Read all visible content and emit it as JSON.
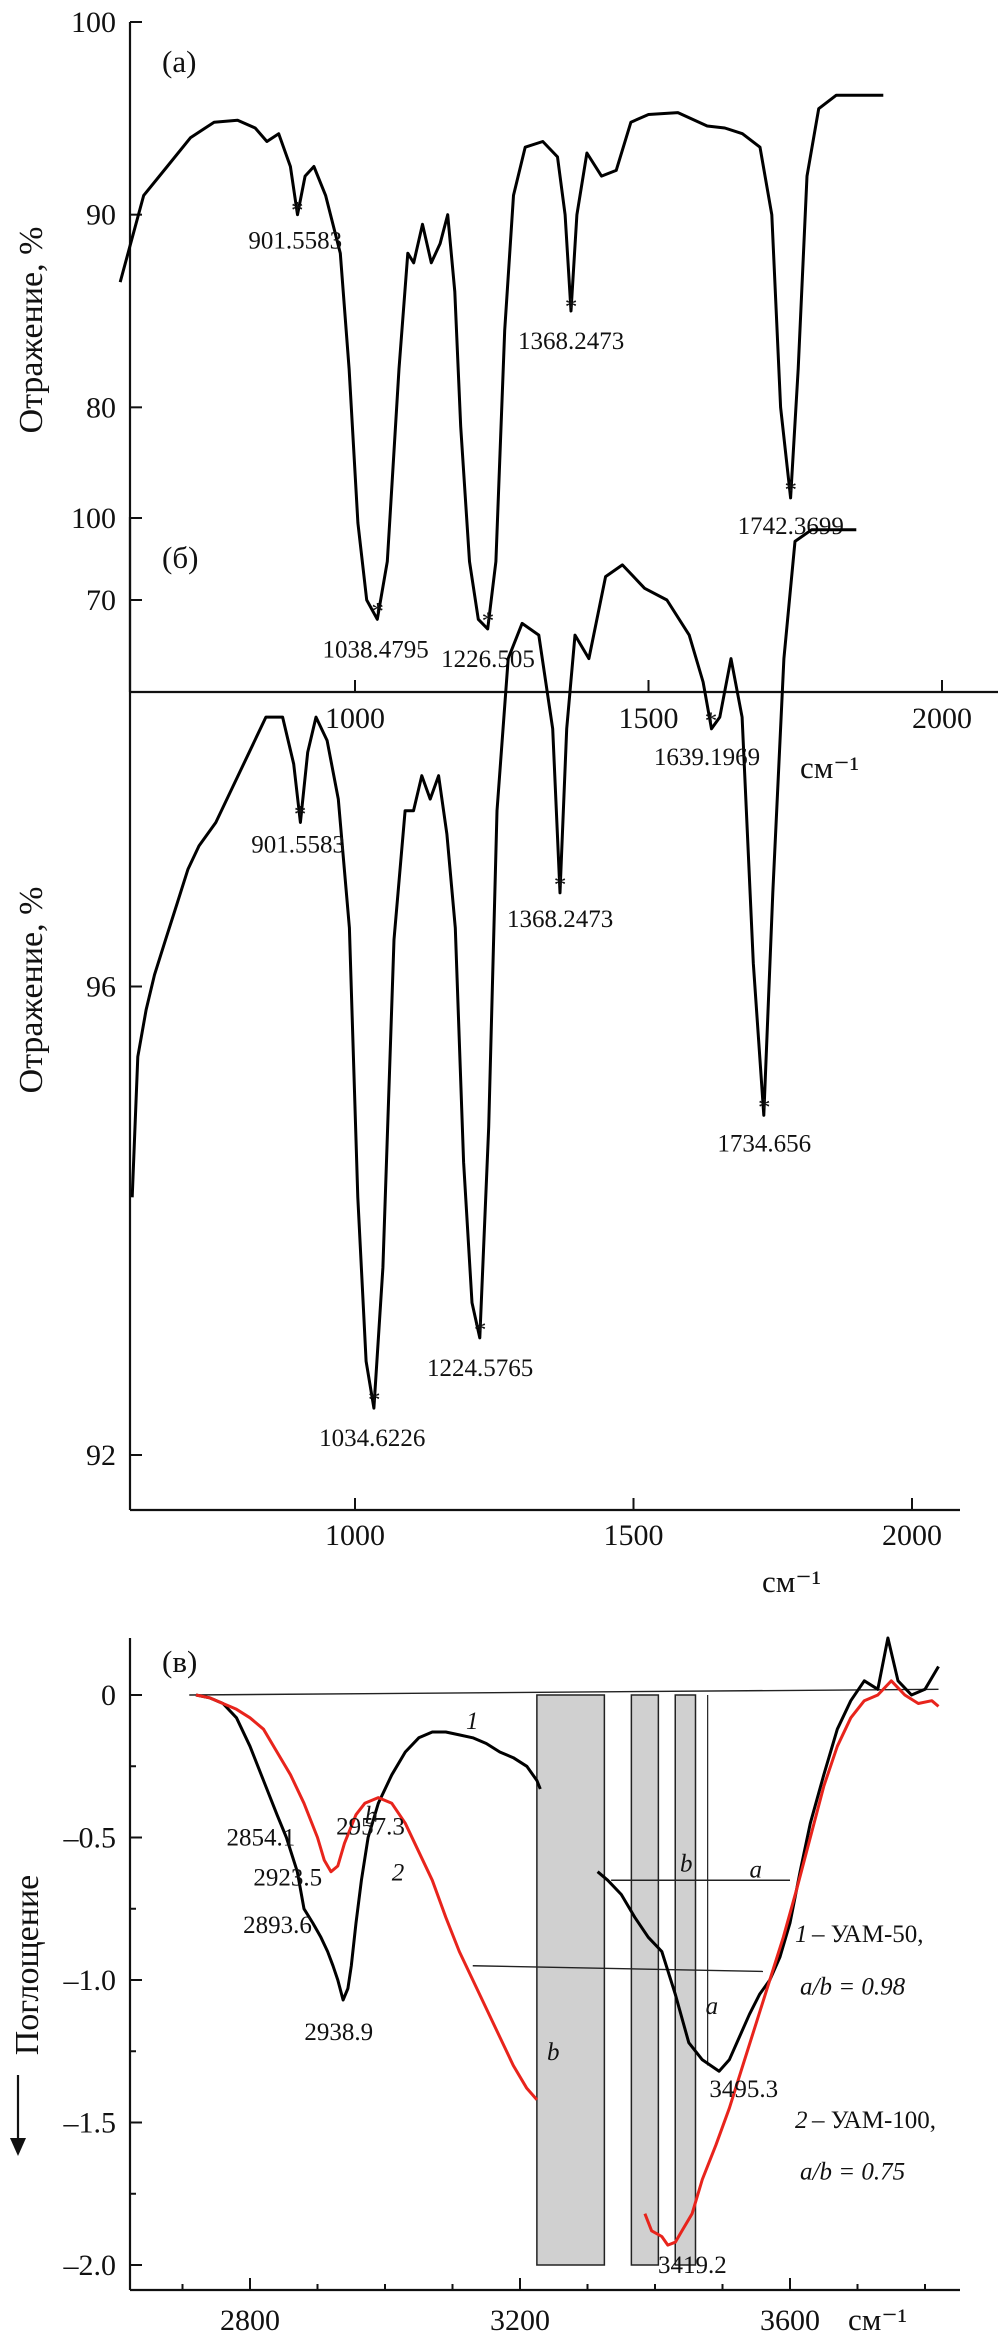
{
  "chart_data": [
    {
      "type": "line",
      "panel_label": "(а)",
      "ylabel": "Отражение, %",
      "xlabel": "см⁻¹",
      "xlim": [
        600,
        2100
      ],
      "ylim": [
        65,
        100
      ],
      "xticks": [
        1000,
        1500,
        2000
      ],
      "yticks": [
        70,
        80,
        90,
        100
      ],
      "series": [
        {
          "color": "#000000",
          "x": [
            600,
            640,
            680,
            720,
            760,
            800,
            830,
            850,
            870,
            890,
            902,
            915,
            930,
            950,
            975,
            990,
            1005,
            1020,
            1038,
            1055,
            1075,
            1090,
            1100,
            1115,
            1130,
            1145,
            1158,
            1170,
            1180,
            1195,
            1210,
            1226,
            1240,
            1255,
            1270,
            1290,
            1320,
            1345,
            1358,
            1368,
            1378,
            1395,
            1420,
            1445,
            1470,
            1500,
            1550,
            1600,
            1630,
            1660,
            1690,
            1710,
            1725,
            1742,
            1755,
            1770,
            1790,
            1820,
            1860,
            1900
          ],
          "y": [
            86.5,
            91,
            92.5,
            94,
            94.8,
            94.9,
            94.5,
            93.8,
            94.2,
            92.5,
            90,
            92,
            92.5,
            91,
            88,
            82,
            74,
            70,
            69,
            72,
            82,
            88,
            87.5,
            89.5,
            87.5,
            88.5,
            90,
            86,
            79,
            72,
            69,
            68.5,
            72,
            84,
            91,
            93.5,
            93.8,
            93,
            90,
            85,
            90,
            93.2,
            92,
            92.3,
            94.8,
            95.2,
            95.3,
            94.6,
            94.5,
            94.2,
            93.5,
            90,
            80,
            75.3,
            82,
            92,
            95.5,
            96.2,
            96.2,
            96.2
          ]
        }
      ],
      "annotations": [
        {
          "x": 901.5583,
          "y": 89.8,
          "text": "901.5583"
        },
        {
          "x": 1038.4795,
          "y": 69.0,
          "text": "1038.4795"
        },
        {
          "x": 1226.505,
          "y": 68.5,
          "text": "1226.505"
        },
        {
          "x": 1368.2473,
          "y": 84.8,
          "text": "1368.2473"
        },
        {
          "x": 1742.3699,
          "y": 75.3,
          "text": "1742.3699"
        }
      ]
    },
    {
      "type": "line",
      "panel_label": "(б)",
      "ylabel": "Отражение, %",
      "xlabel": "см⁻¹",
      "xlim": [
        600,
        2100
      ],
      "ylim": [
        91,
        100
      ],
      "xticks": [
        1000,
        1500,
        2000
      ],
      "yticks": [
        92,
        96,
        100
      ],
      "series": [
        {
          "color": "#000000",
          "x": [
            600,
            610,
            625,
            640,
            660,
            680,
            700,
            720,
            750,
            780,
            810,
            840,
            870,
            890,
            902,
            915,
            930,
            950,
            970,
            990,
            1005,
            1020,
            1034,
            1050,
            1070,
            1090,
            1105,
            1120,
            1135,
            1150,
            1165,
            1180,
            1195,
            1210,
            1224,
            1240,
            1255,
            1275,
            1300,
            1330,
            1355,
            1368,
            1380,
            1395,
            1420,
            1450,
            1480,
            1520,
            1560,
            1600,
            1625,
            1640,
            1655,
            1675,
            1695,
            1715,
            1734,
            1750,
            1770,
            1790,
            1820,
            1860,
            1900
          ],
          "y": [
            94.2,
            95.4,
            95.8,
            96.1,
            96.4,
            96.7,
            97.0,
            97.2,
            97.4,
            97.7,
            98.0,
            98.3,
            98.3,
            97.9,
            97.4,
            98.0,
            98.3,
            98.1,
            97.6,
            96.5,
            94.2,
            92.8,
            92.4,
            93.6,
            96.4,
            97.5,
            97.5,
            97.8,
            97.6,
            97.8,
            97.3,
            96.5,
            94.5,
            93.3,
            93.0,
            94.8,
            97.5,
            98.8,
            99.1,
            99.0,
            98.2,
            96.8,
            98.2,
            99.0,
            98.8,
            99.5,
            99.6,
            99.4,
            99.3,
            99.0,
            98.6,
            98.2,
            98.3,
            98.8,
            98.3,
            96.2,
            94.9,
            96.8,
            98.8,
            99.8,
            99.9,
            99.9,
            99.9
          ]
        }
      ],
      "annotations": [
        {
          "x": 901.5583,
          "y": 97.4,
          "text": "901.5583"
        },
        {
          "x": 1034.6226,
          "y": 92.4,
          "text": "1034.6226"
        },
        {
          "x": 1224.5765,
          "y": 93.0,
          "text": "1224.5765"
        },
        {
          "x": 1368.2473,
          "y": 96.8,
          "text": "1368.2473"
        },
        {
          "x": 1639.1969,
          "y": 98.2,
          "text": "1639.1969"
        },
        {
          "x": 1734.656,
          "y": 94.9,
          "text": "1734.656"
        }
      ]
    },
    {
      "type": "line",
      "panel_label": "(в)",
      "ylabel": "Поглощение",
      "xlabel": "см⁻¹",
      "xlim": [
        2640,
        3870
      ],
      "ylim": [
        -2.1,
        0.2
      ],
      "xticks": [
        2800,
        3200,
        3600
      ],
      "yticks": [
        0,
        -0.5,
        -1.0,
        -1.5,
        -2.0
      ],
      "ytick_labels": [
        "0",
        "–0.5",
        "–1.0",
        "–1.5",
        "–2.0"
      ],
      "series": [
        {
          "name": "1",
          "color": "#000000",
          "x": [
            2720,
            2740,
            2760,
            2780,
            2800,
            2820,
            2840,
            2854,
            2870,
            2880,
            2893,
            2905,
            2915,
            2923,
            2930,
            2938,
            2945,
            2950,
            2957,
            2965,
            2975,
            2990,
            3010,
            3030,
            3050,
            3070,
            3090,
            3110,
            3130,
            3150,
            3170,
            3190,
            3210,
            3225,
            3230
          ],
          "y": [
            0,
            -0.01,
            -0.03,
            -0.08,
            -0.18,
            -0.3,
            -0.42,
            -0.5,
            -0.62,
            -0.75,
            -0.8,
            -0.85,
            -0.9,
            -0.95,
            -1.0,
            -1.07,
            -1.03,
            -0.95,
            -0.8,
            -0.65,
            -0.5,
            -0.38,
            -0.28,
            -0.2,
            -0.15,
            -0.13,
            -0.13,
            -0.14,
            -0.15,
            -0.17,
            -0.2,
            -0.22,
            -0.25,
            -0.3,
            -0.33
          ]
        },
        {
          "name": "1",
          "color": "#000000",
          "x": [
            3315,
            3330,
            3350,
            3370,
            3390,
            3410,
            3430,
            3450,
            3470,
            3495,
            3510,
            3525,
            3540,
            3555,
            3570,
            3585,
            3600,
            3615,
            3630,
            3650,
            3670,
            3690,
            3710,
            3730,
            3745,
            3760,
            3780,
            3800,
            3820
          ],
          "y": [
            -0.62,
            -0.65,
            -0.7,
            -0.78,
            -0.85,
            -0.9,
            -1.05,
            -1.22,
            -1.28,
            -1.32,
            -1.28,
            -1.2,
            -1.12,
            -1.05,
            -1.0,
            -0.92,
            -0.8,
            -0.62,
            -0.45,
            -0.28,
            -0.12,
            -0.02,
            0.05,
            0.02,
            0.2,
            0.05,
            0.0,
            0.02,
            0.1
          ]
        },
        {
          "name": "2",
          "color": "#e8241c",
          "x": [
            2720,
            2740,
            2760,
            2780,
            2800,
            2820,
            2840,
            2860,
            2880,
            2900,
            2910,
            2920,
            2930,
            2940,
            2957,
            2970,
            2990,
            3010,
            3030,
            3050,
            3070,
            3090,
            3110,
            3130,
            3150,
            3170,
            3190,
            3210,
            3225
          ],
          "y": [
            0,
            -0.01,
            -0.03,
            -0.05,
            -0.08,
            -0.12,
            -0.2,
            -0.28,
            -0.38,
            -0.5,
            -0.58,
            -0.62,
            -0.6,
            -0.52,
            -0.42,
            -0.38,
            -0.36,
            -0.38,
            -0.45,
            -0.55,
            -0.65,
            -0.78,
            -0.9,
            -1.0,
            -1.1,
            -1.2,
            -1.3,
            -1.38,
            -1.42
          ]
        },
        {
          "name": "2",
          "color": "#e8241c",
          "x": [
            3385,
            3395,
            3410,
            3419,
            3430,
            3440,
            3455,
            3470,
            3490,
            3510,
            3530,
            3550,
            3570,
            3590,
            3610,
            3630,
            3650,
            3670,
            3690,
            3710,
            3730,
            3750,
            3770,
            3790,
            3810,
            3820
          ],
          "y": [
            -1.82,
            -1.88,
            -1.9,
            -1.93,
            -1.92,
            -1.88,
            -1.82,
            -1.7,
            -1.58,
            -1.45,
            -1.3,
            -1.15,
            -1.0,
            -0.85,
            -0.68,
            -0.5,
            -0.32,
            -0.18,
            -0.08,
            -0.02,
            0.0,
            0.05,
            0.0,
            -0.03,
            -0.02,
            -0.04
          ]
        }
      ],
      "annotations": [
        {
          "x": 2854.1,
          "y": -0.5,
          "text": "2854.1"
        },
        {
          "x": 2923.5,
          "y": -0.62,
          "text": "2923.5"
        },
        {
          "x": 2957.3,
          "y": -0.42,
          "text": "2957.3"
        },
        {
          "x": 2893.6,
          "y": -0.8,
          "text": "2893.6"
        },
        {
          "x": 2938.9,
          "y": -1.07,
          "text": "2938.9"
        },
        {
          "x": 3495.3,
          "y": -1.32,
          "text": "3495.3"
        },
        {
          "x": 3419.2,
          "y": -1.93,
          "text": "3419.2"
        }
      ],
      "labels": {
        "curve1": "1",
        "curve2": "2",
        "a": "a",
        "b": "b",
        "legend1_num": "1",
        "legend1_text": "– УАМ-50,",
        "legend1_ratio": "a/b = 0.98",
        "legend2_num": "2",
        "legend2_text": "– УАМ-100,",
        "legend2_ratio": "a/b = 0.75"
      }
    }
  ]
}
